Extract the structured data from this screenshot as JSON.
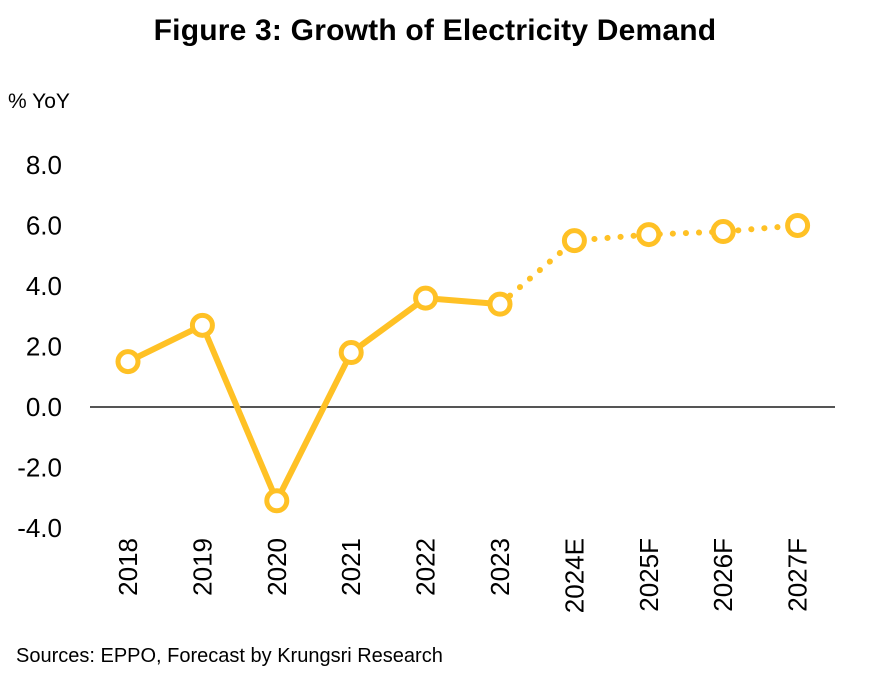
{
  "chart_data": {
    "type": "line",
    "title": "Figure 3: Growth of Electricity Demand",
    "ylabel": "% YoY",
    "xlabel": "",
    "source": "Sources: EPPO, Forecast by Krungsri Research",
    "categories": [
      "2018",
      "2019",
      "2020",
      "2021",
      "2022",
      "2023",
      "2024E",
      "2025F",
      "2026F",
      "2027F"
    ],
    "series": [
      {
        "values": [
          1.5,
          2.7,
          -3.1,
          1.8,
          3.6,
          3.4,
          5.5,
          5.7,
          5.8,
          6.0
        ],
        "color": "#FFC125",
        "solid_through_index": 5,
        "forecast_style": "dotted"
      }
    ],
    "ylim": [
      -4.0,
      8.0
    ],
    "yticks": [
      "8.0",
      "6.0",
      "4.0",
      "2.0",
      "0.0",
      "-2.0",
      "-4.0"
    ],
    "ytick_values": [
      8,
      6,
      4,
      2,
      0,
      -2,
      -4
    ],
    "zero_line": true,
    "grid": false,
    "legend": "none",
    "colors": {
      "line": "#FFC125",
      "marker_fill": "#ffffff",
      "zero_line": "#555555"
    }
  }
}
